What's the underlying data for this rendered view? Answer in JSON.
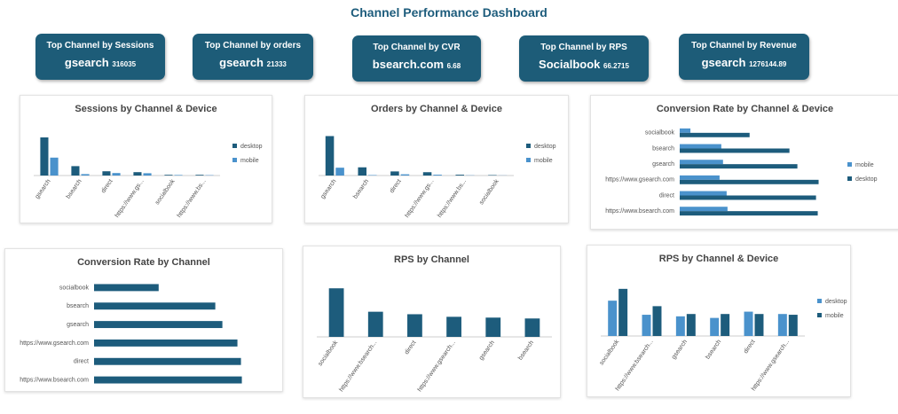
{
  "header": {
    "title": "Channel Performance Dashboard"
  },
  "cards": [
    {
      "label": "Top Channel by Sessions",
      "channel": "gsearch",
      "metric": 316035
    },
    {
      "label": "Top Channel by orders",
      "channel": "gsearch",
      "metric": 21333
    },
    {
      "label": "Top Channel by CVR",
      "channel": "bsearch.com",
      "metric": 6.68
    },
    {
      "label": "Top Channel by RPS",
      "channel": "Socialbook",
      "metric": 66.2715
    },
    {
      "label": "Top Channel by Revenue",
      "channel": "gsearch",
      "metric": 1276144.89
    }
  ],
  "chart_data": [
    {
      "type": "bar",
      "title": "Sessions by Channel & Device",
      "categories": [
        "gsearch",
        "bsearch",
        "direct",
        "https://www.gs...",
        "socialbook",
        "https://www.bs..."
      ],
      "series": [
        {
          "name": "desktop",
          "color": "#1d5c7c",
          "values": [
            215000,
            53000,
            24000,
            19000,
            4000,
            4000
          ]
        },
        {
          "name": "mobile",
          "color": "#4a92cc",
          "values": [
            101000,
            8000,
            14000,
            13000,
            3000,
            2000
          ]
        }
      ],
      "ylim": [
        0,
        250000
      ],
      "legend": "right"
    },
    {
      "type": "bar",
      "title": "Orders by Channel & Device",
      "categories": [
        "gsearch",
        "bsearch",
        "direct",
        "https://www.gs...",
        "https://www.bs...",
        "socialbook"
      ],
      "series": [
        {
          "name": "desktop",
          "color": "#1d5c7c",
          "values": [
            17800,
            3700,
            1850,
            1500,
            370,
            200
          ]
        },
        {
          "name": "mobile",
          "color": "#4a92cc",
          "values": [
            3533,
            200,
            550,
            370,
            100,
            60
          ]
        }
      ],
      "ylim": [
        0,
        20000
      ],
      "legend": "right"
    },
    {
      "type": "barh",
      "title": "Conversion Rate by Channel & Device",
      "categories": [
        "socialbook",
        "bsearch",
        "gsearch",
        "https://www.gsearch.com",
        "direct",
        "https://www.bsearch.com"
      ],
      "series": [
        {
          "name": "mobile",
          "color": "#4a92cc",
          "values": [
            0.62,
            2.41,
            2.51,
            2.31,
            2.72,
            2.77
          ]
        },
        {
          "name": "desktop",
          "color": "#1d5c7c",
          "values": [
            4.05,
            6.36,
            6.82,
            8.05,
            7.9,
            8.0
          ]
        }
      ],
      "xlim": [
        0,
        9
      ],
      "legend": "right"
    },
    {
      "type": "barh",
      "title": "Conversion Rate by Channel",
      "categories": [
        "socialbook",
        "bsearch",
        "gsearch",
        "https://www.gsearch.com",
        "direct",
        "https://www.bsearch.com"
      ],
      "values": [
        2.92,
        5.48,
        5.8,
        6.48,
        6.64,
        6.68
      ],
      "color": "#1d5c7c",
      "xlim": [
        0,
        7.5
      ]
    },
    {
      "type": "bar",
      "title": "RPS by Channel",
      "categories": [
        "socialbook",
        "https://www.bsearch...",
        "direct",
        "https://www.gsearch...",
        "gsearch",
        "bsearch"
      ],
      "values": [
        66.2715,
        34.3,
        30.9,
        27.4,
        26.3,
        25.1
      ],
      "color": "#1d5c7c",
      "ylim": [
        0,
        75
      ]
    },
    {
      "type": "bar",
      "title": "RPS by Channel & Device",
      "categories": [
        "socialbook",
        "https://www.bsearch...",
        "gsearch",
        "bsearch",
        "direct",
        "https://www.gsearch..."
      ],
      "series": [
        {
          "name": "desktop",
          "color": "#4a92cc",
          "values": [
            51.4,
            30.9,
            28.6,
            26.3,
            35.4,
            32
          ]
        },
        {
          "name": "mobile",
          "color": "#1d5c7c",
          "values": [
            68.6,
            43.4,
            32,
            32,
            32,
            30.9
          ]
        }
      ],
      "ylim": [
        0,
        80
      ],
      "legend": "right"
    }
  ]
}
